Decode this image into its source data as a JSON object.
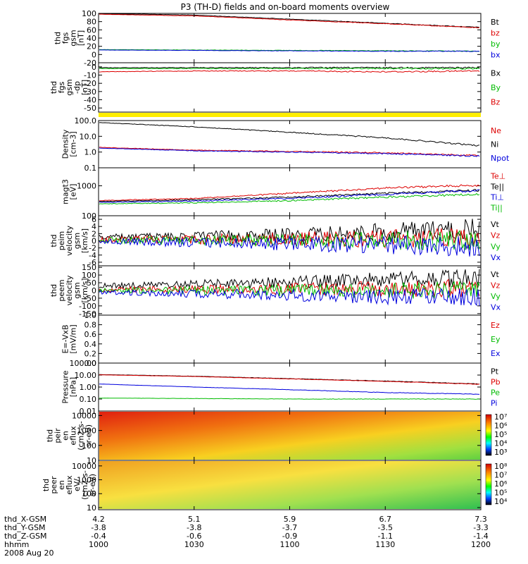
{
  "title": "P3 (TH-D) fields and on-board moments overview",
  "colors": {
    "black": "#000000",
    "red": "#dd0000",
    "green": "#00bb00",
    "blue": "#0000dd",
    "yellow": "#ffee00",
    "bright_green": "#22dd22"
  },
  "chart_data": [
    {
      "type": "line",
      "name": "fgs_gsm",
      "ylabel": [
        "thd",
        "fgs",
        "gsm",
        "[nT]"
      ],
      "ytick_labels": [
        "100",
        "80",
        "60",
        "40",
        "20",
        "0",
        "-20"
      ],
      "ylim": [
        -20,
        100
      ],
      "legend": [
        {
          "label": "Bt",
          "color": "black"
        },
        {
          "label": "bz",
          "color": "red"
        },
        {
          "label": "by",
          "color": "green"
        },
        {
          "label": "bx",
          "color": "blue"
        }
      ],
      "series": [
        {
          "name": "Bt",
          "color": "black",
          "x": [
            1000,
            1030,
            1100,
            1130,
            1200
          ],
          "y": [
            100,
            96,
            86,
            76,
            66
          ]
        },
        {
          "name": "bz",
          "color": "red",
          "x": [
            1000,
            1030,
            1100,
            1130,
            1200
          ],
          "y": [
            98,
            94,
            84,
            75,
            65
          ]
        },
        {
          "name": "by",
          "color": "green",
          "x": [
            1000,
            1030,
            1100,
            1130,
            1200
          ],
          "y": [
            12,
            11,
            10,
            9,
            8
          ]
        },
        {
          "name": "bx",
          "color": "blue",
          "x": [
            1000,
            1030,
            1100,
            1130,
            1200
          ],
          "y": [
            11,
            10,
            9,
            8,
            8
          ]
        }
      ]
    },
    {
      "type": "line",
      "name": "fgs_gsm_dp",
      "ylabel": [
        "thd",
        "fgs",
        "gsm",
        "-dp",
        "[nT]"
      ],
      "ytick_labels": [
        "0",
        "-10",
        "-20",
        "-30",
        "-40",
        "-50"
      ],
      "ylim": [
        -55,
        5
      ],
      "legend": [
        {
          "label": "Bx",
          "color": "black"
        },
        {
          "label": "By",
          "color": "green"
        },
        {
          "label": "Bz",
          "color": "red"
        }
      ],
      "series": [
        {
          "name": "Bx",
          "color": "black",
          "x": [
            1000,
            1030,
            1100,
            1130,
            1200
          ],
          "y": [
            -1,
            -1,
            -1,
            -1,
            -1
          ]
        },
        {
          "name": "By",
          "color": "green",
          "x": [
            1000,
            1030,
            1100,
            1130,
            1200
          ],
          "y": [
            -2,
            -2,
            -2,
            -2,
            -2
          ]
        },
        {
          "name": "Bz",
          "color": "red",
          "x": [
            1000,
            1030,
            1100,
            1130,
            1200
          ],
          "y": [
            -6,
            -5,
            -5,
            -6,
            -5
          ]
        }
      ]
    },
    {
      "type": "line",
      "name": "density",
      "ylabel": [
        "Density",
        "[cm-3]"
      ],
      "yscale": "log",
      "ytick_labels": [
        "100.0",
        "10.0",
        "1.0",
        "0.1"
      ],
      "ylim": [
        0.1,
        100
      ],
      "legend": [
        {
          "label": "Ne",
          "color": "red"
        },
        {
          "label": "Ni",
          "color": "black"
        },
        {
          "label": "Npot",
          "color": "blue"
        }
      ],
      "series": [
        {
          "name": "Ni",
          "color": "black",
          "x": [
            1000,
            1030,
            1100,
            1130,
            1200
          ],
          "y": [
            75,
            40,
            18,
            8,
            2.5
          ]
        },
        {
          "name": "Ne",
          "color": "red",
          "x": [
            1000,
            1030,
            1100,
            1130,
            1200
          ],
          "y": [
            2,
            1.3,
            1.1,
            0.9,
            0.6
          ]
        },
        {
          "name": "Npot",
          "color": "blue",
          "x": [
            1000,
            1030,
            1100,
            1130,
            1200
          ],
          "y": [
            1.8,
            1.2,
            1.0,
            0.8,
            0.55
          ]
        }
      ]
    },
    {
      "type": "line",
      "name": "temperature",
      "ylabel": [
        "magt3",
        "[eV]"
      ],
      "yscale": "log",
      "ytick_labels": [
        "1000",
        "100"
      ],
      "ylim": [
        100,
        4000
      ],
      "legend": [
        {
          "label": "Te⊥",
          "color": "red"
        },
        {
          "label": "Te||",
          "color": "black"
        },
        {
          "label": "Ti⊥",
          "color": "blue"
        },
        {
          "label": "Ti||",
          "color": "green"
        }
      ],
      "series": [
        {
          "name": "Te⊥",
          "color": "red",
          "x": [
            1000,
            1030,
            1100,
            1130,
            1200
          ],
          "y": [
            320,
            380,
            560,
            850,
            1050
          ]
        },
        {
          "name": "Te||",
          "color": "black",
          "x": [
            1000,
            1030,
            1100,
            1130,
            1200
          ],
          "y": [
            300,
            340,
            420,
            560,
            720
          ]
        },
        {
          "name": "Ti⊥",
          "color": "blue",
          "x": [
            1000,
            1030,
            1100,
            1130,
            1200
          ],
          "y": [
            280,
            310,
            380,
            520,
            700
          ]
        },
        {
          "name": "Ti||",
          "color": "green",
          "x": [
            1000,
            1030,
            1100,
            1130,
            1200
          ],
          "y": [
            250,
            270,
            320,
            420,
            520
          ]
        }
      ]
    },
    {
      "type": "line",
      "name": "velocity_peim",
      "ylabel": [
        "thd",
        "peim",
        "velocity",
        "gsm",
        "[km/s]"
      ],
      "ytick_labels": [
        "6",
        "4",
        "2",
        "0",
        "-2",
        "-4",
        "-6"
      ],
      "ylim": [
        -7,
        7
      ],
      "legend": [
        {
          "label": "Vt",
          "color": "black"
        },
        {
          "label": "Vz",
          "color": "red"
        },
        {
          "label": "Vy",
          "color": "green"
        },
        {
          "label": "Vx",
          "color": "blue"
        }
      ],
      "series": [
        {
          "name": "Vt",
          "color": "black",
          "x": [
            1000,
            1030,
            1100,
            1130,
            1200
          ],
          "y": [
            1,
            1.2,
            1.6,
            2.4,
            3.2
          ]
        },
        {
          "name": "Vz",
          "color": "red",
          "x": [
            1000,
            1030,
            1100,
            1130,
            1200
          ],
          "y": [
            0.3,
            0.4,
            0.5,
            0.6,
            0.6
          ]
        },
        {
          "name": "Vy",
          "color": "green",
          "x": [
            1000,
            1030,
            1100,
            1130,
            1200
          ],
          "y": [
            0.1,
            0.1,
            0.1,
            0.1,
            0.1
          ]
        },
        {
          "name": "Vx",
          "color": "blue",
          "x": [
            1000,
            1030,
            1100,
            1130,
            1200
          ],
          "y": [
            -0.3,
            -0.5,
            -0.8,
            -1.2,
            -1.6
          ]
        }
      ]
    },
    {
      "type": "line",
      "name": "velocity_peem",
      "ylabel": [
        "thd",
        "peem",
        "velocity",
        "gsm",
        "[km/s]"
      ],
      "ytick_labels": [
        "150",
        "100",
        "50",
        "0",
        "-50",
        "-100",
        "-150"
      ],
      "ylim": [
        -160,
        160
      ],
      "legend": [
        {
          "label": "Vt",
          "color": "black"
        },
        {
          "label": "Vz",
          "color": "red"
        },
        {
          "label": "Vy",
          "color": "green"
        },
        {
          "label": "Vx",
          "color": "blue"
        }
      ],
      "series": [
        {
          "name": "Vt",
          "color": "black",
          "x": [
            1000,
            1030,
            1100,
            1130,
            1200
          ],
          "y": [
            30,
            40,
            55,
            70,
            80
          ]
        },
        {
          "name": "Vz",
          "color": "red",
          "x": [
            1000,
            1030,
            1100,
            1130,
            1200
          ],
          "y": [
            5,
            8,
            10,
            12,
            14
          ]
        },
        {
          "name": "Vy",
          "color": "green",
          "x": [
            1000,
            1030,
            1100,
            1130,
            1200
          ],
          "y": [
            0,
            0,
            0,
            0,
            0
          ]
        },
        {
          "name": "Vx",
          "color": "blue",
          "x": [
            1000,
            1030,
            1100,
            1130,
            1200
          ],
          "y": [
            -10,
            -20,
            -30,
            -40,
            -45
          ]
        }
      ]
    },
    {
      "type": "line",
      "name": "efield",
      "ylabel": [
        "E=-VxB",
        "[mV/m]"
      ],
      "ytick_labels": [
        "1.0",
        "0.8",
        "0.6",
        "0.4",
        "0.2",
        "0.0"
      ],
      "ylim": [
        0,
        1
      ],
      "legend": [
        {
          "label": "Ez",
          "color": "red"
        },
        {
          "label": "Ey",
          "color": "green"
        },
        {
          "label": "Ex",
          "color": "blue"
        }
      ],
      "series": []
    },
    {
      "type": "line",
      "name": "pressure",
      "ylabel": [
        "Pressure",
        "[nPa]"
      ],
      "yscale": "log",
      "ytick_labels": [
        "100.00",
        "10.00",
        "1.00",
        "0.10",
        "0.01"
      ],
      "ylim": [
        0.01,
        100
      ],
      "legend": [
        {
          "label": "Pt",
          "color": "black"
        },
        {
          "label": "Pb",
          "color": "red"
        },
        {
          "label": "Pe",
          "color": "green"
        },
        {
          "label": "Pi",
          "color": "blue"
        }
      ],
      "series": [
        {
          "name": "Pt",
          "color": "black",
          "x": [
            1000,
            1030,
            1100,
            1130,
            1200
          ],
          "y": [
            11,
            8,
            5,
            3.2,
            1.8
          ]
        },
        {
          "name": "Pb",
          "color": "red",
          "x": [
            1000,
            1030,
            1100,
            1130,
            1200
          ],
          "y": [
            10.5,
            7.6,
            4.8,
            3.0,
            1.7
          ]
        },
        {
          "name": "Pi",
          "color": "blue",
          "x": [
            1000,
            1030,
            1100,
            1130,
            1200
          ],
          "y": [
            1.8,
            1.0,
            0.6,
            0.35,
            0.25
          ]
        },
        {
          "name": "Pe",
          "color": "green",
          "x": [
            1000,
            1030,
            1100,
            1130,
            1200
          ],
          "y": [
            0.12,
            0.11,
            0.1,
            0.1,
            0.1
          ]
        }
      ]
    },
    {
      "type": "heatmap",
      "name": "peir_en_eflux",
      "ylabel": [
        "thd",
        "peir",
        "en",
        "eflux",
        "(cm2-s-",
        "sr-eV)"
      ],
      "yscale": "log",
      "ytick_labels": [
        "10000",
        "1000",
        "100",
        "10"
      ],
      "ylim": [
        10,
        20000
      ],
      "colorbar_labels": [
        "10⁷",
        "10⁶",
        "10⁵",
        "10⁴",
        "10³"
      ]
    },
    {
      "type": "heatmap",
      "name": "peer_en_eflux",
      "ylabel": [
        "thd",
        "peer",
        "en",
        "eflux",
        "eV/",
        "(cm2-s-",
        "sr-eV)"
      ],
      "yscale": "log",
      "ytick_labels": [
        "10000",
        "1000",
        "100",
        "10"
      ],
      "ylim": [
        7,
        25000
      ],
      "colorbar_labels": [
        "10⁸",
        "10⁷",
        "10⁶",
        "10⁵",
        "10⁴"
      ]
    }
  ],
  "x_axis": {
    "row_labels": [
      "thd_X-GSM",
      "thd_Y-GSM",
      "thd_Z-GSM",
      "hhmm",
      "2008 Aug 20"
    ],
    "columns": [
      {
        "x": "4.2",
        "y": "-3.8",
        "z": "-0.4",
        "t": "1000"
      },
      {
        "x": "5.1",
        "y": "-3.8",
        "z": "-0.6",
        "t": "1030"
      },
      {
        "x": "5.9",
        "y": "-3.7",
        "z": "-0.9",
        "t": "1100"
      },
      {
        "x": "6.7",
        "y": "-3.5",
        "z": "-1.1",
        "t": "1130"
      },
      {
        "x": "7.3",
        "y": "-3.3",
        "z": "-1.4",
        "t": "1200"
      }
    ]
  }
}
